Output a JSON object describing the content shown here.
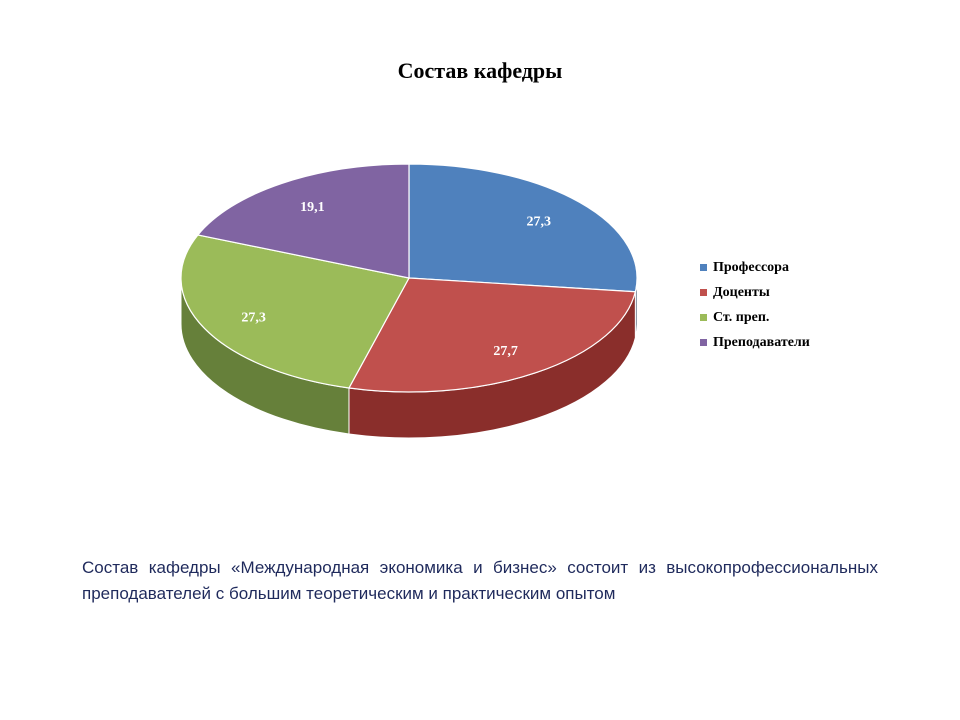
{
  "chart_data": {
    "type": "pie",
    "title": "Состав кафедры",
    "slices": [
      {
        "name": "Профессора",
        "value": 27.3,
        "label": "27,3",
        "color": "#4f81bd",
        "side_color": "#1f3350"
      },
      {
        "name": "Доценты",
        "value": 27.7,
        "label": "27,7",
        "color": "#c0504d",
        "side_color": "#8a2e2b"
      },
      {
        "name": "Ст. преп.",
        "value": 27.3,
        "label": "27,3",
        "color": "#9bbb59",
        "side_color": "#66803a"
      },
      {
        "name": "Преподаватели",
        "value": 19.1,
        "label": "19,1",
        "color": "#8064a2",
        "side_color": "#503d68"
      }
    ],
    "legend_position": "right"
  },
  "caption": "Состав кафедры «Международная экономика и бизнес» состоит из высокопрофессиональных преподавателей с большим теоретическим и практическим опытом"
}
